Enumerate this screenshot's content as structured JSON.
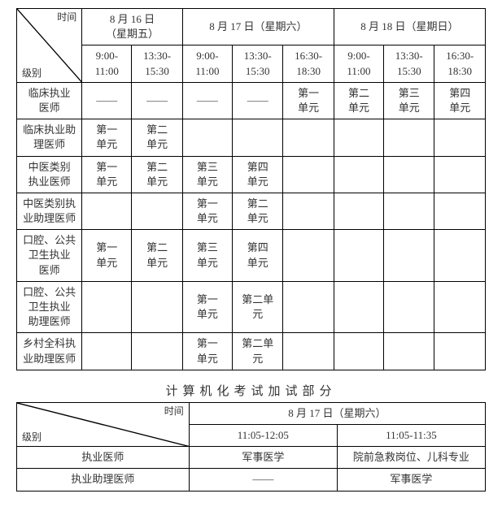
{
  "table1": {
    "diag_top": "时间",
    "diag_bottom": "级别",
    "day_headers": [
      {
        "label": "8 月 16 日\n（星期五）",
        "span": 2
      },
      {
        "label": "8 月 17 日（星期六）",
        "span": 3
      },
      {
        "label": "8 月 18 日（星期日）",
        "span": 3
      }
    ],
    "time_headers": [
      "9:00-\n11:00",
      "13:30-\n15:30",
      "9:00-\n11:00",
      "13:30-\n15:30",
      "16:30-\n18:30",
      "9:00-\n11:00",
      "13:30-\n15:30",
      "16:30-\n18:30"
    ],
    "rows": [
      {
        "label": "临床执业\n医师",
        "cells": [
          "——",
          "——",
          "——",
          "——",
          "第一\n单元",
          "第二\n单元",
          "第三\n单元",
          "第四\n单元"
        ]
      },
      {
        "label": "临床执业助\n理医师",
        "cells": [
          "第一\n单元",
          "第二\n单元",
          "",
          "",
          "",
          "",
          "",
          ""
        ]
      },
      {
        "label": "中医类别\n执业医师",
        "cells": [
          "第一\n单元",
          "第二\n单元",
          "第三\n单元",
          "第四\n单元",
          "",
          "",
          "",
          ""
        ]
      },
      {
        "label": "中医类别执\n业助理医师",
        "cells": [
          "",
          "",
          "第一\n单元",
          "第二\n单元",
          "",
          "",
          "",
          ""
        ]
      },
      {
        "label": "口腔、公共\n卫生执业\n医师",
        "cells": [
          "第一\n单元",
          "第二\n单元",
          "第三\n单元",
          "第四\n单元",
          "",
          "",
          "",
          ""
        ]
      },
      {
        "label": "口腔、公共\n卫生执业\n助理医师",
        "cells": [
          "",
          "",
          "第一\n单元",
          "第二单\n元",
          "",
          "",
          "",
          ""
        ]
      },
      {
        "label": "乡村全科执\n业助理医师",
        "cells": [
          "",
          "",
          "第一\n单元",
          "第二单\n元",
          "",
          "",
          "",
          ""
        ]
      }
    ]
  },
  "section_title": "计算机化考试加试部分",
  "table2": {
    "diag_top": "时间",
    "diag_bottom": "级别",
    "day_header": "8 月 17 日（星期六）",
    "time_headers": [
      "11:05-12:05",
      "11:05-11:35"
    ],
    "rows": [
      {
        "label": "执业医师",
        "cells": [
          "军事医学",
          "院前急救岗位、儿科专业"
        ]
      },
      {
        "label": "执业助理医师",
        "cells": [
          "——",
          "军事医学"
        ]
      }
    ]
  }
}
